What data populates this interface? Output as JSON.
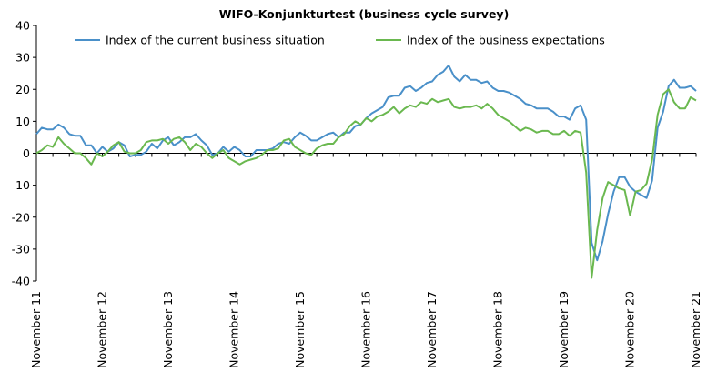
{
  "chart_data": {
    "type": "line",
    "title": "WIFO-Konjunkturtest (business cycle survey)",
    "xlabel": "",
    "ylabel": "",
    "ylim": [
      -40,
      40
    ],
    "yticks": [
      40,
      30,
      20,
      10,
      0,
      -10,
      -20,
      -30,
      -40
    ],
    "x_tick_labels": [
      "November 11",
      "November 12",
      "November 13",
      "November 14",
      "November 15",
      "November 16",
      "November 17",
      "November 18",
      "November 19",
      "November 20",
      "November 21"
    ],
    "x_start": "2011-11",
    "x_end": "2021-11",
    "grid": false,
    "legend_position": "top",
    "series": [
      {
        "name": "Index of the current business situation",
        "color": "#4a90c9",
        "values": [
          6,
          8,
          7.5,
          7.5,
          9,
          8,
          6,
          5.5,
          5.5,
          2.5,
          2.5,
          0,
          2,
          0.5,
          1.5,
          3.5,
          2.5,
          -1,
          -0.5,
          -0.5,
          0.5,
          3,
          1.5,
          4,
          5,
          2.5,
          3.5,
          5,
          5,
          6,
          4,
          2.5,
          -0.5,
          0,
          2,
          0.5,
          2,
          1,
          -1,
          -1,
          1,
          1,
          1,
          1.5,
          3,
          3.5,
          3,
          5,
          6.5,
          5.5,
          4,
          4,
          5,
          6,
          6.5,
          5,
          6.5,
          6.5,
          8.5,
          9,
          11,
          12.5,
          13.5,
          14.5,
          17.5,
          18,
          18,
          20.5,
          21,
          19.5,
          20.5,
          22,
          22.5,
          24.5,
          25.5,
          27.5,
          24,
          22.5,
          24.5,
          23,
          23,
          22,
          22.5,
          20.5,
          19.5,
          19.5,
          19,
          18,
          17,
          15.5,
          15,
          14,
          14,
          14,
          13,
          11.5,
          11.5,
          10.5,
          14,
          15,
          10.5,
          -28,
          -33.5,
          -27.5,
          -19,
          -12,
          -7.5,
          -7.5,
          -10.5,
          -12,
          -13,
          -14,
          -8.5,
          8,
          13,
          21,
          23,
          20.5,
          20.5,
          21,
          19.5
        ]
      },
      {
        "name": "Index of the business expectations",
        "color": "#6ab84f",
        "values": [
          0,
          1,
          2.5,
          2,
          5,
          3,
          1.5,
          0,
          0,
          -1.5,
          -3.5,
          0,
          -1,
          0.5,
          2.5,
          3.5,
          0.5,
          0,
          0,
          1,
          3.5,
          4,
          4,
          4.5,
          3,
          4.5,
          5,
          3.5,
          1,
          3,
          2,
          0,
          -1.5,
          0,
          1,
          -1.5,
          -2.5,
          -3.5,
          -2.5,
          -2,
          -1.5,
          -0.5,
          1,
          1,
          1.5,
          4,
          4.5,
          2,
          1,
          0,
          -0.5,
          1.5,
          2.5,
          3,
          3,
          5,
          6,
          8.5,
          10,
          9,
          11,
          10,
          11.5,
          12,
          13,
          14.5,
          12.5,
          14,
          15,
          14.5,
          16,
          15.5,
          17,
          16,
          16.5,
          17,
          14.5,
          14,
          14.5,
          14.5,
          15,
          14,
          15.5,
          14,
          12,
          11,
          10,
          8.5,
          7,
          8,
          7.5,
          6.5,
          7,
          7,
          6,
          6,
          7,
          5.5,
          7,
          6.5,
          -6,
          -39,
          -24,
          -14,
          -9,
          -10,
          -11,
          -11.5,
          -19.5,
          -12,
          -11.5,
          -9.5,
          -2,
          12,
          18.5,
          20,
          16,
          14,
          14,
          17.5,
          16.5
        ]
      }
    ]
  }
}
